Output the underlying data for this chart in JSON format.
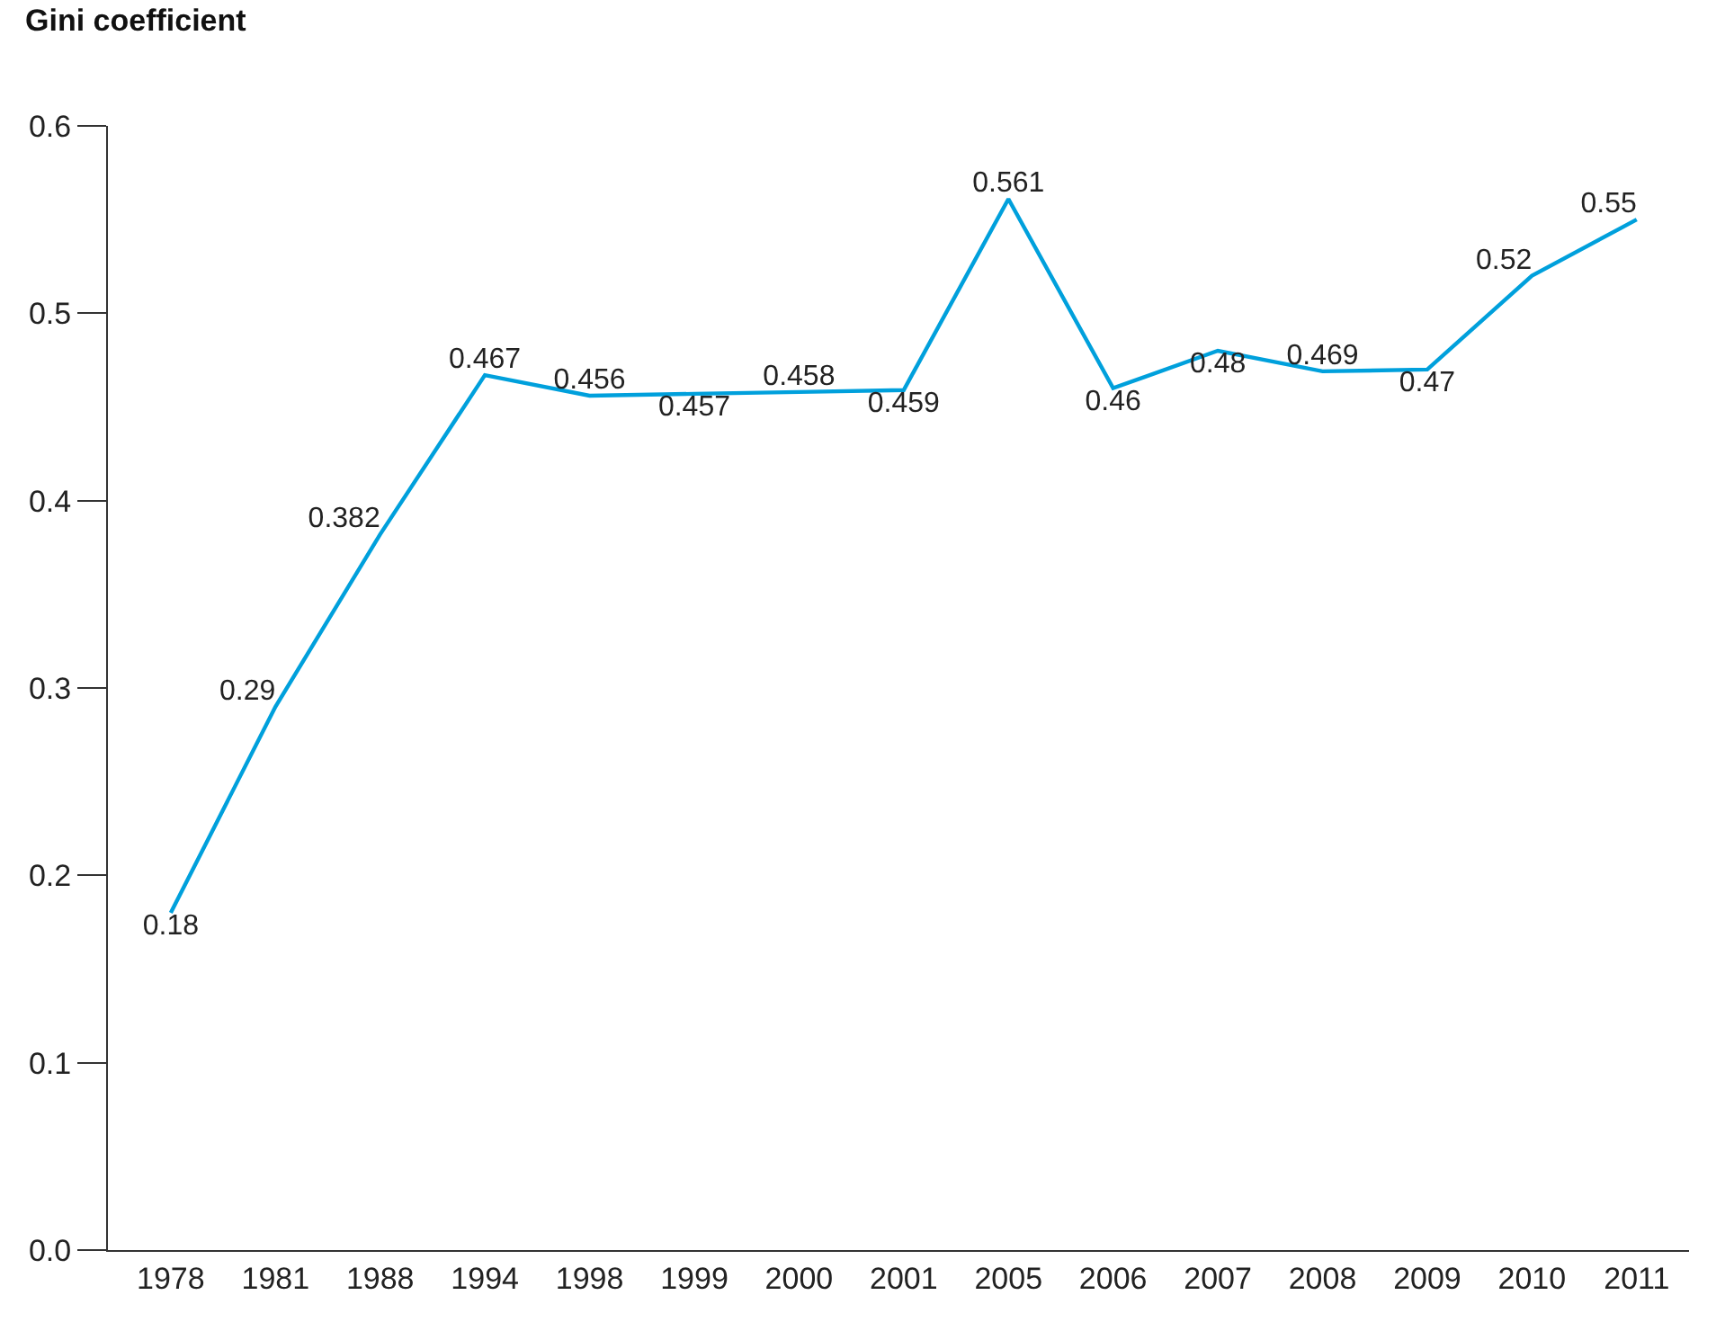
{
  "chart_data": {
    "type": "line",
    "ylabel": "Gini coefficient",
    "categories": [
      "1978",
      "1981",
      "1988",
      "1994",
      "1998",
      "1999",
      "2000",
      "2001",
      "2005",
      "2006",
      "2007",
      "2008",
      "2009",
      "2010",
      "2011"
    ],
    "series": [
      {
        "color": "#00a0dc",
        "values": [
          0.18,
          0.29,
          0.382,
          0.467,
          0.456,
          0.457,
          0.458,
          0.459,
          0.561,
          0.46,
          0.48,
          0.469,
          0.47,
          0.52,
          0.55
        ]
      }
    ],
    "ylim": [
      0,
      0.6
    ],
    "yticks": [
      {
        "value": 0,
        "label": "0.0"
      },
      0.1,
      0.2,
      0.3,
      0.4,
      0.5,
      0.6
    ],
    "legend": false,
    "marker": "none",
    "line_style": "solid",
    "data_labels": true
  }
}
